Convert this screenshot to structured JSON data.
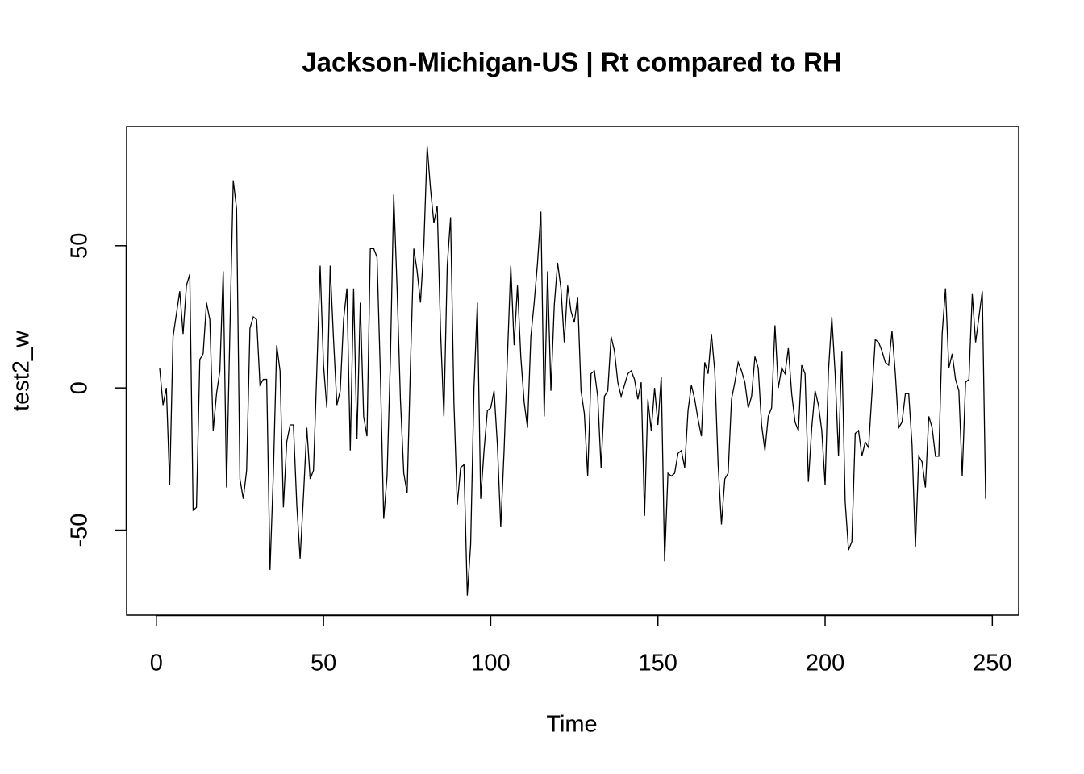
{
  "chart_data": {
    "type": "line",
    "title": "Jackson-Michigan-US | Rt compared to RH",
    "xlabel": "Time",
    "ylabel": "test2_w",
    "x": [
      1,
      2,
      3,
      4,
      5,
      6,
      7,
      8,
      9,
      10,
      11,
      12,
      13,
      14,
      15,
      16,
      17,
      18,
      19,
      20,
      21,
      22,
      23,
      24,
      25,
      26,
      27,
      28,
      29,
      30,
      31,
      32,
      33,
      34,
      35,
      36,
      37,
      38,
      39,
      40,
      41,
      42,
      43,
      44,
      45,
      46,
      47,
      48,
      49,
      50,
      51,
      52,
      53,
      54,
      55,
      56,
      57,
      58,
      59,
      60,
      61,
      62,
      63,
      64,
      65,
      66,
      67,
      68,
      69,
      70,
      71,
      72,
      73,
      74,
      75,
      76,
      77,
      78,
      79,
      80,
      81,
      82,
      83,
      84,
      85,
      86,
      87,
      88,
      89,
      90,
      91,
      92,
      93,
      94,
      95,
      96,
      97,
      98,
      99,
      100,
      101,
      102,
      103,
      104,
      105,
      106,
      107,
      108,
      109,
      110,
      111,
      112,
      113,
      114,
      115,
      116,
      117,
      118,
      119,
      120,
      121,
      122,
      123,
      124,
      125,
      126,
      127,
      128,
      129,
      130,
      131,
      132,
      133,
      134,
      135,
      136,
      137,
      138,
      139,
      140,
      141,
      142,
      143,
      144,
      145,
      146,
      147,
      148,
      149,
      150,
      151,
      152,
      153,
      154,
      155,
      156,
      157,
      158,
      159,
      160,
      161,
      162,
      163,
      164,
      165,
      166,
      167,
      168,
      169,
      170,
      171,
      172,
      173,
      174,
      175,
      176,
      177,
      178,
      179,
      180,
      181,
      182,
      183,
      184,
      185,
      186,
      187,
      188,
      189,
      190,
      191,
      192,
      193,
      194,
      195,
      196,
      197,
      198,
      199,
      200,
      201,
      202,
      203,
      204,
      205,
      206,
      207,
      208,
      209,
      210,
      211,
      212,
      213,
      214,
      215,
      216,
      217,
      218,
      219,
      220,
      221,
      222,
      223,
      224,
      225,
      226,
      227,
      228,
      229,
      230,
      231,
      232,
      233,
      234,
      235,
      236,
      237,
      238,
      239,
      240,
      241,
      242,
      243,
      244,
      245,
      246,
      247,
      248
    ],
    "series": [
      {
        "name": "test2_w",
        "color": "#000000",
        "values": [
          7,
          -6,
          0,
          -34,
          18,
          26,
          34,
          19,
          36,
          40,
          -43,
          -42,
          10,
          12,
          30,
          24,
          -15,
          -2,
          6,
          41,
          -35,
          20,
          73,
          63,
          -32,
          -39,
          -29,
          21,
          25,
          24,
          1,
          3,
          3,
          -64,
          -30,
          15,
          6,
          -42,
          -19,
          -13,
          -13,
          -41,
          -60,
          -38,
          -14,
          -32,
          -29,
          6,
          43,
          8,
          -7,
          43,
          17,
          -6,
          -1,
          24,
          35,
          -22,
          35,
          -18,
          30,
          -10,
          -17,
          49,
          49,
          46,
          5,
          -46,
          -31,
          10,
          68,
          35,
          -4,
          -30,
          -37,
          8,
          49,
          41,
          30,
          50,
          85,
          70,
          58,
          64,
          20,
          -10,
          43,
          60,
          -5,
          -41,
          -28,
          -27,
          -73,
          -55,
          0,
          30,
          -39,
          -22,
          -8,
          -7,
          -1,
          -20,
          -49,
          -22,
          11,
          43,
          15,
          36,
          11,
          -5,
          -14,
          18,
          30,
          44,
          62,
          -10,
          41,
          -1,
          29,
          44,
          35,
          16,
          36,
          27,
          23,
          32,
          -1,
          -9,
          -31,
          5,
          6,
          -3,
          -28,
          -3,
          -1,
          18,
          13,
          2,
          -3,
          1,
          5,
          6,
          3,
          -4,
          2,
          -45,
          -4,
          -15,
          0,
          -13,
          4,
          -61,
          -30,
          -31,
          -30,
          -23,
          -22,
          -28,
          -8,
          1,
          -4,
          -11,
          -17,
          9,
          5,
          19,
          6,
          -27,
          -48,
          -32,
          -30,
          -4,
          2,
          9,
          6,
          2,
          -7,
          -3,
          11,
          7,
          -13,
          -22,
          -10,
          -7,
          22,
          0,
          7,
          5,
          14,
          -2,
          -12,
          -15,
          8,
          5,
          -33,
          -14,
          -1,
          -6,
          -15,
          -34,
          6,
          25,
          5,
          -24,
          13,
          -40,
          -57,
          -54,
          -16,
          -15,
          -24,
          -19,
          -21,
          -2,
          17,
          16,
          13,
          9,
          8,
          20,
          5,
          -14,
          -12,
          -2,
          -2,
          -20,
          -56,
          -24,
          -26,
          -35,
          -10,
          -14,
          -24,
          -24,
          19,
          35,
          7,
          12,
          3,
          -1,
          -31,
          2,
          3,
          33,
          16,
          25,
          34,
          -39
        ]
      }
    ],
    "xlim": [
      -8.88,
      257.88
    ],
    "ylim": [
      -79.9,
      91.9
    ],
    "xticks": [
      0,
      50,
      100,
      150,
      200,
      250
    ],
    "yticks": [
      -50,
      0,
      50
    ]
  }
}
